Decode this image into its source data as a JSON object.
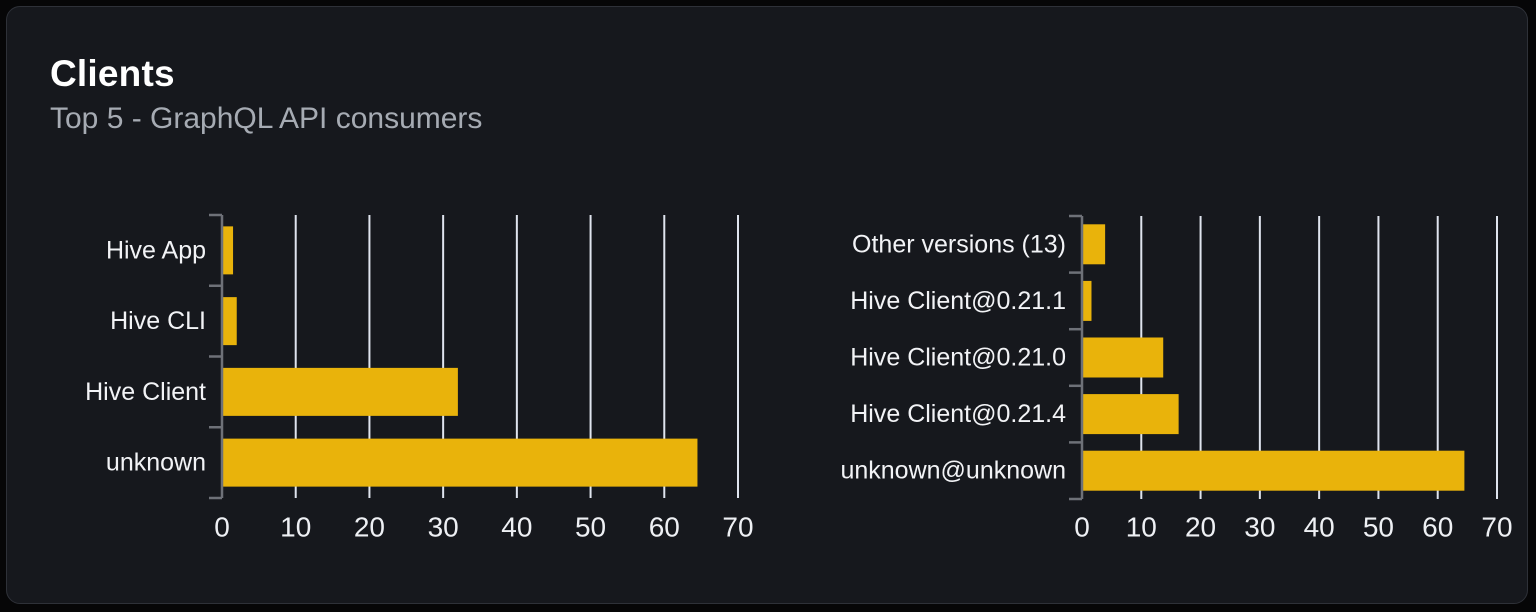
{
  "card": {
    "title": "Clients",
    "subtitle": "Top 5 - GraphQL API consumers"
  },
  "colors": {
    "page_bg": "#060607",
    "card_bg": "#16181d",
    "card_border": "#2e3138",
    "bar": "#e9b30b",
    "grid_line": "#dfe4ee",
    "axis_line": "#6e7178",
    "title_text": "#ffffff",
    "subtitle_text": "#a6abb3",
    "category_label_text": "#f2f3f6",
    "tick_label_text": "#eef0f4"
  },
  "chart_data": [
    {
      "type": "bar",
      "orientation": "horizontal",
      "name": "clients-by-name",
      "categories": [
        "Hive App",
        "Hive CLI",
        "Hive Client",
        "unknown"
      ],
      "values": [
        1.5,
        2,
        32,
        64.5
      ],
      "xlim": [
        0,
        70
      ],
      "xticks": [
        0,
        10,
        20,
        30,
        40,
        50,
        60,
        70
      ],
      "grid": true,
      "legend": "none"
    },
    {
      "type": "bar",
      "orientation": "horizontal",
      "name": "clients-by-version",
      "categories": [
        "Other versions (13)",
        "Hive Client@0.21.1",
        "Hive Client@0.21.0",
        "Hive Client@0.21.4",
        "unknown@unknown"
      ],
      "values": [
        3.9,
        1.6,
        13.7,
        16.3,
        64.5
      ],
      "xlim": [
        0,
        70
      ],
      "xticks": [
        0,
        10,
        20,
        30,
        40,
        50,
        60,
        70
      ],
      "grid": true,
      "legend": "none"
    }
  ]
}
